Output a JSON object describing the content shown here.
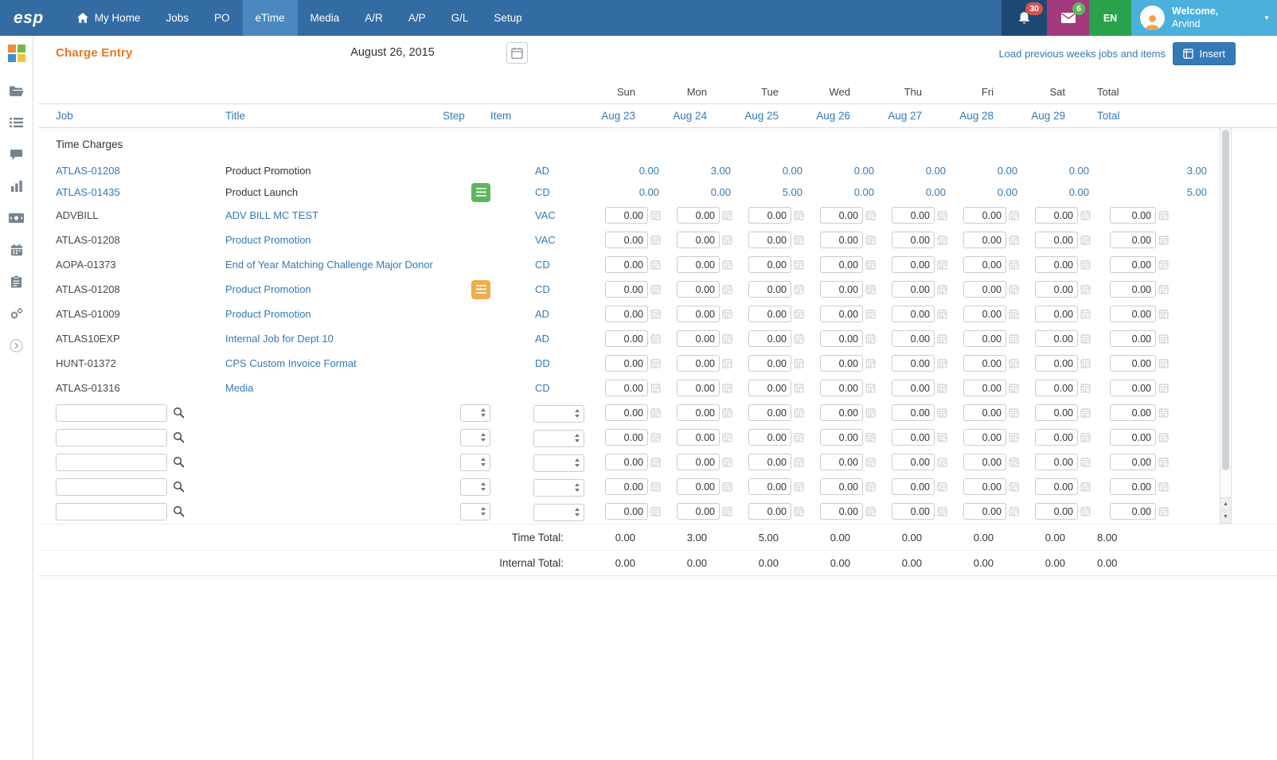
{
  "nav": {
    "brand": "esp",
    "items": [
      {
        "label": "My Home",
        "icon": "home-icon"
      },
      {
        "label": "Jobs"
      },
      {
        "label": "PO"
      },
      {
        "label": "eTime",
        "active": true
      },
      {
        "label": "Media"
      },
      {
        "label": "A/R"
      },
      {
        "label": "A/P"
      },
      {
        "label": "G/L"
      },
      {
        "label": "Setup"
      }
    ],
    "bell_count": "30",
    "mail_count": "6",
    "language": "EN",
    "welcome": "Welcome,",
    "username": "Arvind"
  },
  "header": {
    "title": "Charge Entry",
    "date_value": "August 26, 2015",
    "load_link": "Load previous weeks jobs and items",
    "insert_label": "Insert"
  },
  "sidebar": {
    "icons": [
      "folder-icon",
      "rows-icon",
      "chat-icon",
      "chart-icon",
      "money-icon",
      "calendar-icon",
      "clipboard-icon",
      "gears-icon",
      "expand-icon"
    ]
  },
  "table": {
    "day_names": [
      "Sun",
      "Mon",
      "Tue",
      "Wed",
      "Thu",
      "Fri",
      "Sat",
      "Total"
    ],
    "headers": {
      "job": "Job",
      "title": "Title",
      "step": "Step",
      "item": "Item",
      "total": "Total",
      "dates": [
        "Aug 23",
        "Aug 24",
        "Aug 25",
        "Aug 26",
        "Aug 27",
        "Aug 28",
        "Aug 29"
      ]
    },
    "section_label": "Time Charges",
    "display_rows": [
      {
        "job": "ATLAS-01208",
        "title": "Product Promotion",
        "badge": null,
        "item": "AD",
        "values": [
          "0.00",
          "3.00",
          "0.00",
          "0.00",
          "0.00",
          "0.00",
          "0.00"
        ],
        "total": "3.00"
      },
      {
        "job": "ATLAS-01435",
        "title": "Product Launch",
        "badge": "green",
        "item": "CD",
        "values": [
          "0.00",
          "0.00",
          "5.00",
          "0.00",
          "0.00",
          "0.00",
          "0.00"
        ],
        "total": "5.00"
      }
    ],
    "entry_rows": [
      {
        "job": "ADVBILL",
        "title": "ADV BILL MC TEST",
        "badge": null,
        "item": "VAC",
        "values": [
          "0.00",
          "0.00",
          "0.00",
          "0.00",
          "0.00",
          "0.00",
          "0.00"
        ],
        "total": "0.00"
      },
      {
        "job": "ATLAS-01208",
        "title": "Product Promotion",
        "badge": null,
        "item": "VAC",
        "values": [
          "0.00",
          "0.00",
          "0.00",
          "0.00",
          "0.00",
          "0.00",
          "0.00"
        ],
        "total": "0.00"
      },
      {
        "job": "AOPA-01373",
        "title": "End of Year Matching Challenge Major Donor",
        "badge": null,
        "item": "CD",
        "values": [
          "0.00",
          "0.00",
          "0.00",
          "0.00",
          "0.00",
          "0.00",
          "0.00"
        ],
        "total": "0.00"
      },
      {
        "job": "ATLAS-01208",
        "title": "Product Promotion",
        "badge": "orange",
        "item": "CD",
        "values": [
          "0.00",
          "0.00",
          "0.00",
          "0.00",
          "0.00",
          "0.00",
          "0.00"
        ],
        "total": "0.00"
      },
      {
        "job": "ATLAS-01009",
        "title": "Product Promotion",
        "badge": null,
        "item": "AD",
        "values": [
          "0.00",
          "0.00",
          "0.00",
          "0.00",
          "0.00",
          "0.00",
          "0.00"
        ],
        "total": "0.00"
      },
      {
        "job": "ATLAS10EXP",
        "title": "Internal Job for Dept 10",
        "badge": null,
        "item": "AD",
        "values": [
          "0.00",
          "0.00",
          "0.00",
          "0.00",
          "0.00",
          "0.00",
          "0.00"
        ],
        "total": "0.00"
      },
      {
        "job": "HUNT-01372",
        "title": "CPS Custom Invoice Format",
        "badge": null,
        "item": "DD",
        "values": [
          "0.00",
          "0.00",
          "0.00",
          "0.00",
          "0.00",
          "0.00",
          "0.00"
        ],
        "total": "0.00"
      },
      {
        "job": "ATLAS-01316",
        "title": "Media",
        "badge": null,
        "item": "CD",
        "values": [
          "0.00",
          "0.00",
          "0.00",
          "0.00",
          "0.00",
          "0.00",
          "0.00"
        ],
        "total": "0.00"
      }
    ],
    "blank_rows": 5,
    "blank_value": "0.00",
    "totals": [
      {
        "label": "Time Total:",
        "values": [
          "0.00",
          "3.00",
          "5.00",
          "0.00",
          "0.00",
          "0.00",
          "0.00"
        ],
        "total": "8.00"
      },
      {
        "label": "Internal Total:",
        "values": [
          "0.00",
          "0.00",
          "0.00",
          "0.00",
          "0.00",
          "0.00",
          "0.00"
        ],
        "total": "0.00"
      }
    ]
  },
  "colors": {
    "nav_blue": "#336ba3",
    "active_tab_blue": "#4c88bf",
    "bell_segment": "#1d4a75",
    "mail_segment": "#a23a7d",
    "language_segment": "#2aa24c",
    "user_segment": "#4cb0dd",
    "badge_red": "#d9534f",
    "badge_green": "#5cb85c",
    "accent_orange": "#e87724",
    "link_blue": "#337ab7",
    "note_badge_green": "#5cb85c",
    "note_badge_orange": "#f0ad4e",
    "logo_squares": [
      "#f08a3e",
      "#7ab648",
      "#3f8fd2",
      "#f2c23e"
    ]
  }
}
